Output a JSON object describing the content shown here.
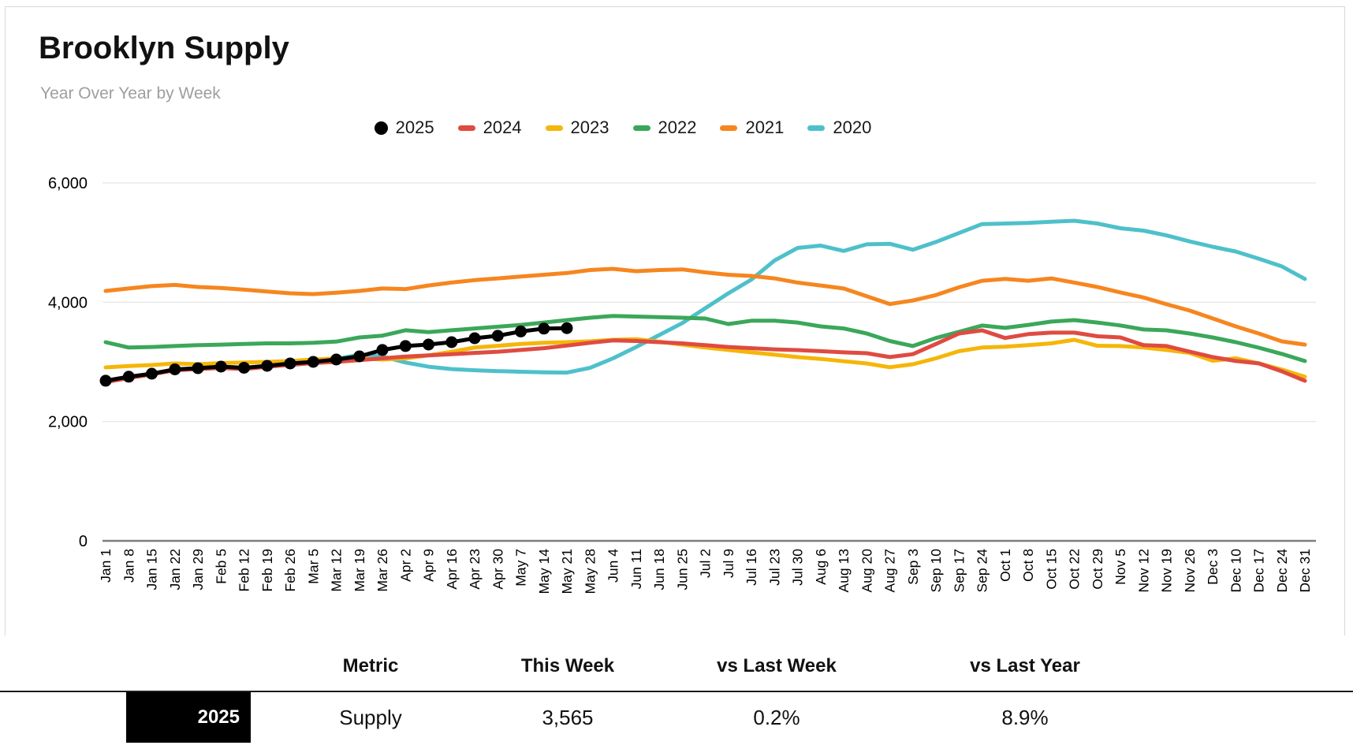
{
  "header": {
    "title": "Brooklyn Supply",
    "subtitle": "Year Over Year by Week"
  },
  "legend": [
    {
      "label": "2025",
      "color": "#000000",
      "marker": "circle"
    },
    {
      "label": "2024",
      "color": "#DF4B41",
      "marker": "dash"
    },
    {
      "label": "2023",
      "color": "#F5B60A",
      "marker": "dash"
    },
    {
      "label": "2022",
      "color": "#3BA75A",
      "marker": "dash"
    },
    {
      "label": "2021",
      "color": "#F6861F",
      "marker": "dash"
    },
    {
      "label": "2020",
      "color": "#4EC0CB",
      "marker": "dash"
    }
  ],
  "chart_data": {
    "type": "line",
    "title": "Brooklyn Supply",
    "subtitle": "Year Over Year by Week",
    "xlabel": "",
    "ylabel": "",
    "ylim": [
      0,
      6000
    ],
    "y_ticks": [
      0,
      2000,
      4000,
      6000
    ],
    "y_tick_labels": [
      "0",
      "2,000",
      "4,000",
      "6,000"
    ],
    "grid": "horizontal",
    "legend_position": "top",
    "x_labels": [
      "Jan 1",
      "Jan 8",
      "Jan 15",
      "Jan 22",
      "Jan 29",
      "Feb 5",
      "Feb 12",
      "Feb 19",
      "Feb 26",
      "Mar 5",
      "Mar 12",
      "Mar 19",
      "Mar 26",
      "Apr 2",
      "Apr 9",
      "Apr 16",
      "Apr 23",
      "Apr 30",
      "May 7",
      "May 14",
      "May 21",
      "May 28",
      "Jun 4",
      "Jun 11",
      "Jun 18",
      "Jun 25",
      "Jul 2",
      "Jul 9",
      "Jul 16",
      "Jul 23",
      "Jul 30",
      "Aug 6",
      "Aug 13",
      "Aug 20",
      "Aug 27",
      "Sep 3",
      "Sep 10",
      "Sep 17",
      "Sep 24",
      "Oct 1",
      "Oct 8",
      "Oct 15",
      "Oct 22",
      "Oct 29",
      "Nov 5",
      "Nov 12",
      "Nov 19",
      "Nov 26",
      "Dec 3",
      "Dec 10",
      "Dec 17",
      "Dec 24",
      "Dec 31"
    ],
    "series": [
      {
        "name": "2020",
        "color": "#4EC0CB",
        "marker": "none",
        "values": [
          null,
          null,
          null,
          null,
          null,
          null,
          null,
          null,
          2950,
          3000,
          3050,
          3120,
          3090,
          2990,
          2920,
          2880,
          2860,
          2845,
          2835,
          2825,
          2820,
          2900,
          3060,
          3250,
          3450,
          3650,
          3900,
          4150,
          4380,
          4700,
          4910,
          4950,
          4860,
          4970,
          4980,
          4880,
          5010,
          5160,
          5310,
          5320,
          5330,
          5350,
          5365,
          5320,
          5240,
          5200,
          5120,
          5020,
          4930,
          4850,
          4730,
          4600,
          4390
        ]
      },
      {
        "name": "2021",
        "color": "#F6861F",
        "marker": "none",
        "values": [
          4190,
          4230,
          4270,
          4290,
          4256,
          4240,
          4210,
          4180,
          4150,
          4137,
          4160,
          4190,
          4230,
          4220,
          4280,
          4330,
          4370,
          4400,
          4430,
          4460,
          4490,
          4540,
          4560,
          4520,
          4540,
          4550,
          4500,
          4460,
          4440,
          4400,
          4330,
          4280,
          4230,
          4100,
          3970,
          4030,
          4120,
          4250,
          4360,
          4390,
          4360,
          4400,
          4330,
          4256,
          4164,
          4080,
          3966,
          3860,
          3728,
          3595,
          3476,
          3344,
          3290
        ]
      },
      {
        "name": "2022",
        "color": "#3BA75A",
        "marker": "none",
        "values": [
          3331,
          3240,
          3250,
          3265,
          3280,
          3290,
          3300,
          3310,
          3310,
          3320,
          3340,
          3410,
          3440,
          3530,
          3500,
          3530,
          3560,
          3590,
          3620,
          3660,
          3700,
          3740,
          3770,
          3760,
          3750,
          3740,
          3727,
          3635,
          3690,
          3690,
          3660,
          3595,
          3560,
          3476,
          3350,
          3265,
          3400,
          3503,
          3609,
          3570,
          3620,
          3675,
          3700,
          3660,
          3610,
          3543,
          3529,
          3476,
          3410,
          3331,
          3238,
          3133,
          3014
        ]
      },
      {
        "name": "2023",
        "color": "#F5B60A",
        "marker": "none",
        "values": [
          2908,
          2930,
          2947,
          2974,
          2960,
          2980,
          2990,
          3000,
          3014,
          3040,
          3055,
          3060,
          3040,
          3060,
          3110,
          3170,
          3240,
          3270,
          3300,
          3320,
          3330,
          3345,
          3370,
          3380,
          3340,
          3290,
          3240,
          3200,
          3160,
          3120,
          3080,
          3050,
          3010,
          2974,
          2910,
          2960,
          3060,
          3180,
          3240,
          3255,
          3280,
          3310,
          3370,
          3270,
          3265,
          3240,
          3200,
          3150,
          3020,
          3060,
          2975,
          2870,
          2750
        ]
      },
      {
        "name": "2024",
        "color": "#DF4B41",
        "marker": "none",
        "values": [
          2660,
          2730,
          2790,
          2860,
          2880,
          2900,
          2880,
          2920,
          2950,
          2980,
          3000,
          3030,
          3060,
          3090,
          3110,
          3130,
          3150,
          3170,
          3200,
          3230,
          3274,
          3320,
          3360,
          3350,
          3330,
          3310,
          3280,
          3250,
          3230,
          3210,
          3198,
          3180,
          3160,
          3146,
          3080,
          3130,
          3300,
          3476,
          3529,
          3400,
          3465,
          3490,
          3490,
          3430,
          3410,
          3280,
          3265,
          3172,
          3080,
          3015,
          2975,
          2842,
          2683
        ]
      },
      {
        "name": "2025",
        "color": "#000000",
        "marker": "circle",
        "values": [
          2684,
          2751,
          2802,
          2874,
          2894,
          2921,
          2901,
          2934,
          2974,
          3000,
          3040,
          3093,
          3199,
          3265,
          3291,
          3331,
          3397,
          3437,
          3510,
          3558,
          3565
        ]
      }
    ]
  },
  "table": {
    "headers": [
      "Metric",
      "This Week",
      "vs Last Week",
      "vs Last Year"
    ],
    "rows": [
      {
        "year": "2025",
        "metric": "Supply",
        "this_week": "3,565",
        "vs_last_week": "0.2%",
        "vs_last_year": "8.9%"
      }
    ]
  }
}
